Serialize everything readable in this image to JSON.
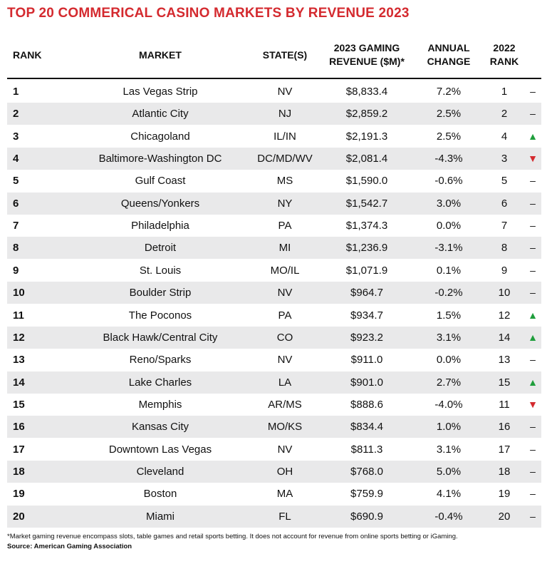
{
  "header": {
    "title": "TOP 20 COMMERICAL CASINO MARKETS BY REVENUE 2023"
  },
  "table": {
    "columns": [
      [
        "RANK"
      ],
      [
        "MARKET"
      ],
      [
        "STATE(S)"
      ],
      [
        "2023 GAMING",
        "REVENUE ($M)*"
      ],
      [
        "ANNUAL",
        "CHANGE"
      ],
      [
        "2022",
        "RANK"
      ]
    ],
    "rows": [
      [
        "1",
        "Las Vegas Strip",
        "NV",
        "$8,833.4",
        "7.2%",
        "1",
        "–"
      ],
      [
        "2",
        "Atlantic City",
        "NJ",
        "$2,859.2",
        "2.5%",
        "2",
        "–"
      ],
      [
        "3",
        "Chicagoland",
        "IL/IN",
        "$2,191.3",
        "2.5%",
        "4",
        "▲"
      ],
      [
        "4",
        "Baltimore-Washington DC",
        "DC/MD/WV",
        "$2,081.4",
        "-4.3%",
        "3",
        "▼"
      ],
      [
        "5",
        "Gulf Coast",
        "MS",
        "$1,590.0",
        "-0.6%",
        "5",
        "–"
      ],
      [
        "6",
        "Queens/Yonkers",
        "NY",
        "$1,542.7",
        "3.0%",
        "6",
        "–"
      ],
      [
        "7",
        "Philadelphia",
        "PA",
        "$1,374.3",
        "0.0%",
        "7",
        "–"
      ],
      [
        "8",
        "Detroit",
        "MI",
        "$1,236.9",
        "-3.1%",
        "8",
        "–"
      ],
      [
        "9",
        "St. Louis",
        "MO/IL",
        "$1,071.9",
        "0.1%",
        "9",
        "–"
      ],
      [
        "10",
        "Boulder Strip",
        "NV",
        "$964.7",
        "-0.2%",
        "10",
        "–"
      ],
      [
        "11",
        "The Poconos",
        "PA",
        "$934.7",
        "1.5%",
        "12",
        "▲"
      ],
      [
        "12",
        "Black Hawk/Central City",
        "CO",
        "$923.2",
        "3.1%",
        "14",
        "▲"
      ],
      [
        "13",
        "Reno/Sparks",
        "NV",
        "$911.0",
        "0.0%",
        "13",
        "–"
      ],
      [
        "14",
        "Lake Charles",
        "LA",
        "$901.0",
        "2.7%",
        "15",
        "▲"
      ],
      [
        "15",
        "Memphis",
        "AR/MS",
        "$888.6",
        "-4.0%",
        "11",
        "▼"
      ],
      [
        "16",
        "Kansas City",
        "MO/KS",
        "$834.4",
        "1.0%",
        "16",
        "–"
      ],
      [
        "17",
        "Downtown Las Vegas",
        "NV",
        "$811.3",
        "3.1%",
        "17",
        "–"
      ],
      [
        "18",
        "Cleveland",
        "OH",
        "$768.0",
        "5.0%",
        "18",
        "–"
      ],
      [
        "19",
        "Boston",
        "MA",
        "$759.9",
        "4.1%",
        "19",
        "–"
      ],
      [
        "20",
        "Miami",
        "FL",
        "$690.9",
        "-0.4%",
        "20",
        "–"
      ]
    ]
  },
  "footer": {
    "note": "*Market gaming revenue encompass slots, table games and retail sports betting. It does not account for revenue from online sports betting or iGaming.",
    "source": "Source: American Gaming Association"
  }
}
